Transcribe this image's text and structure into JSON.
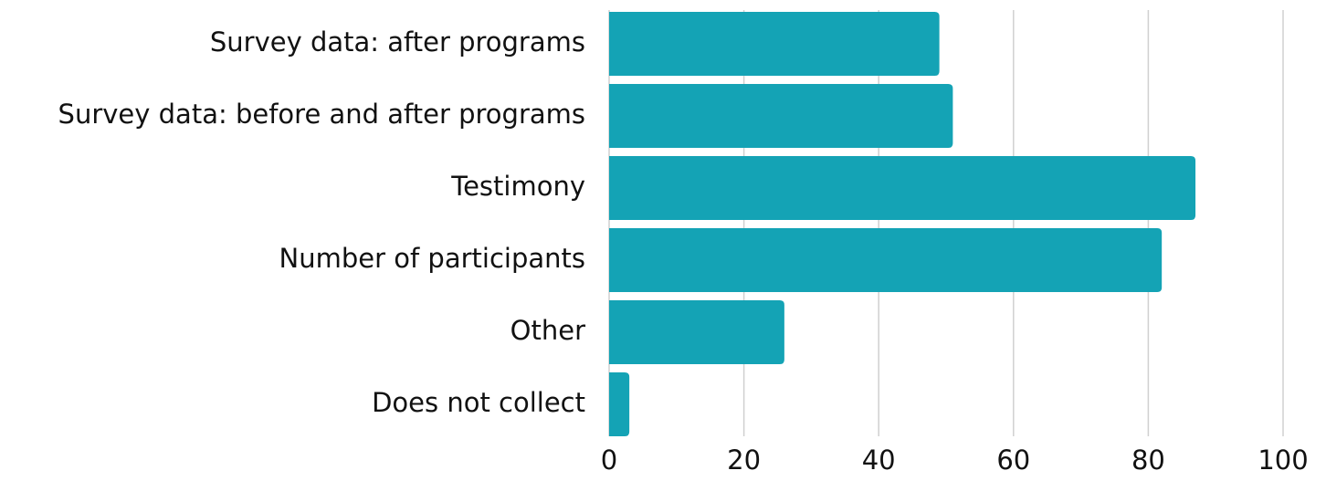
{
  "chart_data": {
    "type": "barh",
    "categories": [
      "Survey data: after programs",
      "Survey data: before and after programs",
      "Testimony",
      "Number of participants",
      "Other",
      "Does not collect"
    ],
    "values": [
      49,
      51,
      87,
      82,
      26,
      3
    ],
    "color": "#14a3b5",
    "xlim": [
      0,
      100
    ],
    "xticks": [
      0,
      20,
      40,
      60,
      80,
      100
    ],
    "grid": true
  }
}
